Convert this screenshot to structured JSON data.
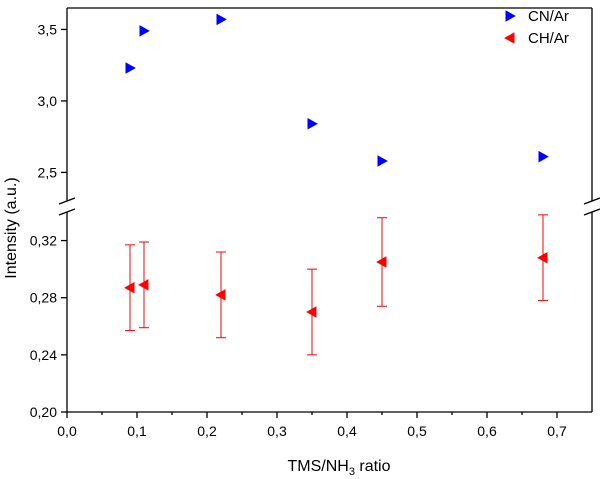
{
  "chart_data": {
    "type": "scatter",
    "xlabel": "TMS/NH3 ratio",
    "xlabel_main": "TMS/NH",
    "xlabel_sub": "3",
    "xlabel_tail": " ratio",
    "ylabel": "Intensity (a.u.)",
    "xlim": [
      0.0,
      0.75
    ],
    "x_ticks": [
      "0,0",
      "0,1",
      "0,2",
      "0,3",
      "0,4",
      "0,5",
      "0,6",
      "0,7"
    ],
    "x_tick_values": [
      0.0,
      0.1,
      0.2,
      0.3,
      0.4,
      0.5,
      0.6,
      0.7
    ],
    "y_break": true,
    "y_upper": {
      "ylim": [
        2.3,
        3.65
      ],
      "ticks": [
        "2,5",
        "3,0",
        "3,5"
      ],
      "tick_values": [
        2.5,
        3.0,
        3.5
      ]
    },
    "y_lower": {
      "ylim": [
        0.2,
        0.34
      ],
      "ticks": [
        "0,20",
        "0,24",
        "0,28",
        "0,32"
      ],
      "tick_values": [
        0.2,
        0.24,
        0.28,
        0.32
      ]
    },
    "legend_position": "top-right",
    "grid": false,
    "series": [
      {
        "name": "CN/Ar",
        "marker": "triangle-right",
        "color": "#0000ff",
        "panel": "upper",
        "x": [
          0.09,
          0.11,
          0.22,
          0.35,
          0.45,
          0.68
        ],
        "y": [
          3.23,
          3.49,
          3.57,
          2.84,
          2.58,
          2.61
        ]
      },
      {
        "name": "CH/Ar",
        "marker": "triangle-left",
        "color": "#ff0000",
        "panel": "lower",
        "x": [
          0.09,
          0.11,
          0.22,
          0.35,
          0.45,
          0.68
        ],
        "y": [
          0.287,
          0.289,
          0.282,
          0.27,
          0.305,
          0.308
        ],
        "error": [
          0.03,
          0.03,
          0.03,
          0.03,
          0.031,
          0.03
        ]
      }
    ]
  }
}
